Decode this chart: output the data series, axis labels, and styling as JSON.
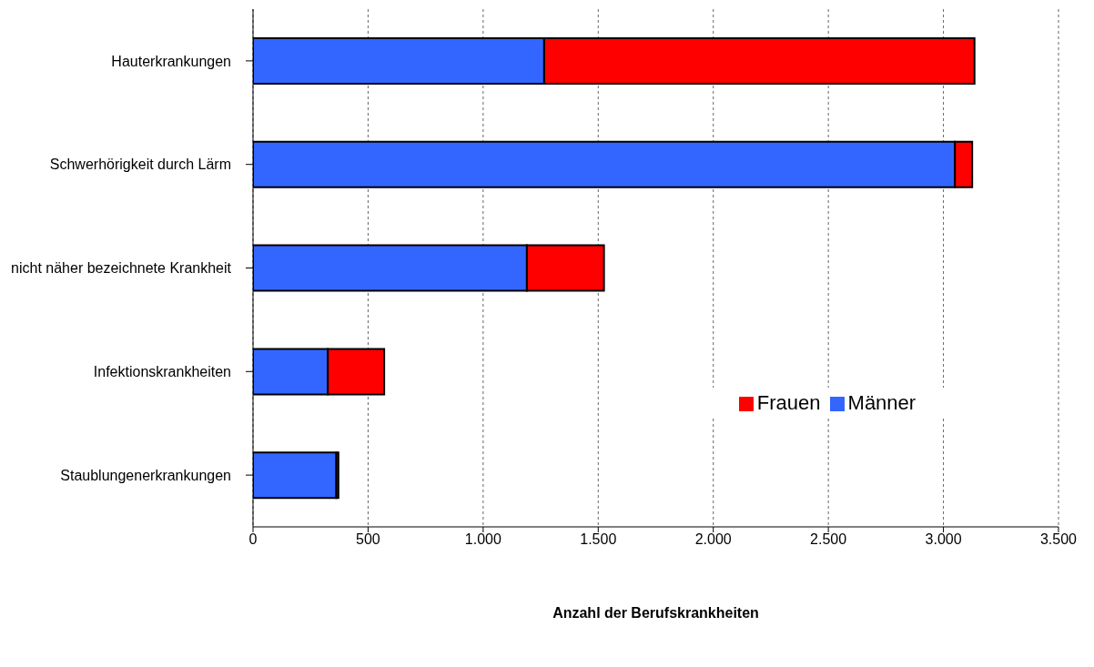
{
  "chart_data": {
    "type": "bar",
    "orientation": "horizontal",
    "stacked": true,
    "xlabel": "Anzahl der Berufskrankheiten",
    "categories": [
      "Hauterkrankungen",
      "Schwerhörigkeit durch Lärm",
      "nicht näher bezeichnete Krankheit",
      "Infektionskrankheiten",
      "Staublungenerkrankungen"
    ],
    "series": [
      {
        "name": "Männer",
        "color": "#3366ff",
        "values": [
          1265,
          3050,
          1190,
          325,
          362
        ]
      },
      {
        "name": "Frauen",
        "color": "#ff0000",
        "values": [
          1870,
          75,
          335,
          245,
          9
        ]
      }
    ],
    "xlim": [
      0,
      3500
    ],
    "xticks": [
      0,
      500,
      {
        "value": 1000,
        "label": "1.000"
      },
      {
        "value": 1500,
        "label": "1.500"
      },
      {
        "value": 2000,
        "label": "2.000"
      },
      {
        "value": 2500,
        "label": "2.500"
      },
      {
        "value": 3000,
        "label": "3.000"
      },
      {
        "value": 3500,
        "label": "3.500"
      }
    ],
    "grid": "x",
    "legend": "right"
  }
}
